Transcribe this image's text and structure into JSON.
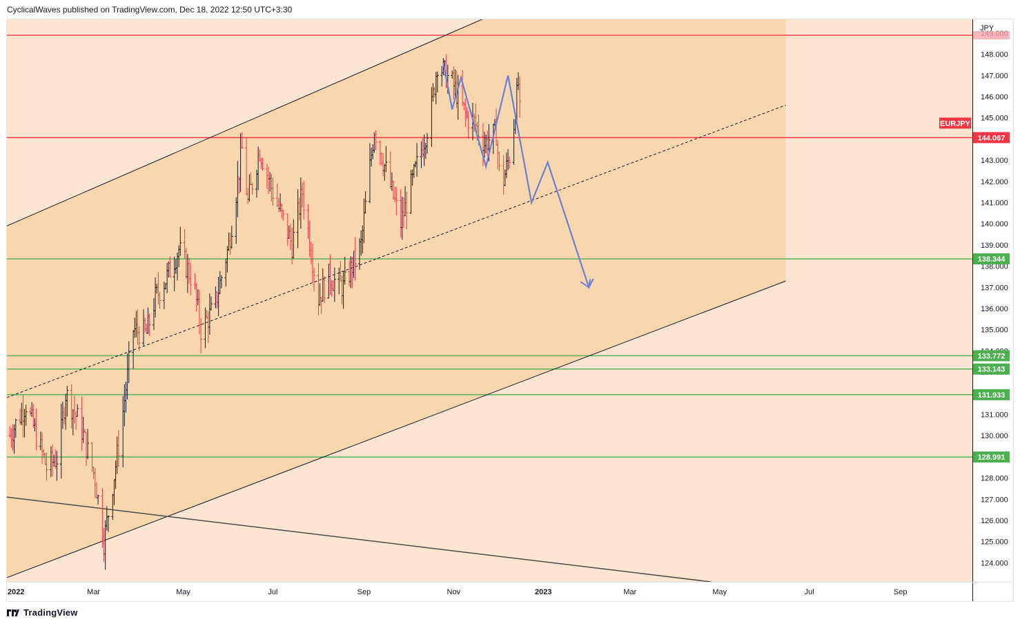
{
  "header": {
    "attribution": "CyclicalWaves published on TradingView.com, Dec 18, 2022 12:50 UTC+3:30"
  },
  "footer": {
    "brand": "TradingView"
  },
  "chart_data": {
    "type": "candlestick",
    "symbol": "EURJPY",
    "currency": "JPY",
    "last_price": "144.067",
    "x_tick_labels": [
      "2022",
      "Mar",
      "May",
      "Jul",
      "Sep",
      "Nov",
      "2023",
      "Mar",
      "May",
      "Jul",
      "Sep"
    ],
    "x_range": [
      "2022-01-01",
      "2023-10-20"
    ],
    "y_ticks": [
      "124.000",
      "125.000",
      "126.000",
      "127.000",
      "128.000",
      "129.000",
      "130.000",
      "131.000",
      "132.000",
      "133.000",
      "134.000",
      "135.000",
      "136.000",
      "137.000",
      "138.000",
      "139.000",
      "140.000",
      "141.000",
      "142.000",
      "143.000",
      "144.000",
      "145.000",
      "146.000",
      "147.000",
      "148.000",
      "149.000"
    ],
    "y_range": [
      123.1,
      149.65
    ],
    "horizontal_levels": [
      {
        "value": 148.9,
        "color": "#f23645",
        "label": "",
        "show_label": false
      },
      {
        "value": 144.067,
        "color": "#f23645",
        "label": "144.067",
        "show_label": true
      },
      {
        "value": 138.344,
        "color": "#4caf50",
        "label": "138.344",
        "show_label": true
      },
      {
        "value": 133.772,
        "color": "#4caf50",
        "label": "133.772",
        "show_label": true
      },
      {
        "value": 133.143,
        "color": "#4caf50",
        "label": "133.143",
        "show_label": true
      },
      {
        "value": 131.933,
        "color": "#4caf50",
        "label": "131.933",
        "show_label": true
      },
      {
        "value": 128.991,
        "color": "#4caf50",
        "label": "128.991",
        "show_label": true
      }
    ],
    "channel": {
      "upper": [
        [
          "2022-01-01",
          139.9
        ],
        [
          "2022-12-02",
          150.0
        ]
      ],
      "midline": [
        [
          "2022-01-01",
          131.8
        ],
        [
          "2023-06-15",
          145.6
        ]
      ],
      "lower": [
        [
          "2022-01-01",
          123.3
        ],
        [
          "2023-06-15",
          137.3
        ]
      ],
      "fill_end": "2023-06-15"
    },
    "long_trendline": [
      [
        "2022-01-01",
        127.1
      ],
      [
        "2023-04-25",
        123.1
      ]
    ],
    "projection_path": [
      [
        "2022-10-25",
        147.6
      ],
      [
        "2022-10-31",
        145.4
      ],
      [
        "2022-11-06",
        146.9
      ],
      [
        "2022-11-23",
        142.7
      ],
      [
        "2022-12-08",
        147.0
      ],
      [
        "2022-12-24",
        141.0
      ],
      [
        "2023-01-04",
        142.9
      ],
      [
        "2023-02-01",
        137.0
      ],
      [
        "2023-02-04",
        137.4
      ]
    ],
    "colors": {
      "up": "#131722",
      "down": "#f23645",
      "background": "#fbe4d0",
      "channel_fill": "#f8d7ae",
      "projection": "#6b7fd7",
      "support": "#4caf50",
      "resistance": "#f23645"
    },
    "series": [
      {
        "name": "EURJPY",
        "anchors": [
          [
            "2022-01-03",
            130.0
          ],
          [
            "2022-01-14",
            131.5
          ],
          [
            "2022-01-28",
            128.5
          ],
          [
            "2022-02-05",
            129.0
          ],
          [
            "2022-02-10",
            132.0
          ],
          [
            "2022-02-20",
            130.5
          ],
          [
            "2022-03-02",
            128.0
          ],
          [
            "2022-03-08",
            125.0
          ],
          [
            "2022-03-18",
            129.5
          ],
          [
            "2022-03-28",
            135.0
          ],
          [
            "2022-04-06",
            134.8
          ],
          [
            "2022-04-12",
            136.5
          ],
          [
            "2022-04-20",
            137.5
          ],
          [
            "2022-04-28",
            138.8
          ],
          [
            "2022-05-08",
            137.2
          ],
          [
            "2022-05-13",
            135.0
          ],
          [
            "2022-05-22",
            136.0
          ],
          [
            "2022-06-01",
            139.0
          ],
          [
            "2022-06-10",
            143.5
          ],
          [
            "2022-06-14",
            141.0
          ],
          [
            "2022-06-22",
            143.5
          ],
          [
            "2022-07-01",
            141.5
          ],
          [
            "2022-07-14",
            139.0
          ],
          [
            "2022-07-21",
            141.5
          ],
          [
            "2022-08-01",
            136.5
          ],
          [
            "2022-08-08",
            137.5
          ],
          [
            "2022-08-18",
            137.0
          ],
          [
            "2022-08-30",
            139.0
          ],
          [
            "2022-09-08",
            144.5
          ],
          [
            "2022-09-16",
            142.5
          ],
          [
            "2022-09-26",
            140.0
          ],
          [
            "2022-10-06",
            142.5
          ],
          [
            "2022-10-16",
            145.0
          ],
          [
            "2022-10-21",
            147.6
          ],
          [
            "2022-11-01",
            146.5
          ],
          [
            "2022-11-10",
            145.0
          ],
          [
            "2022-11-15",
            144.8
          ],
          [
            "2022-11-22",
            143.8
          ],
          [
            "2022-11-30",
            144.3
          ],
          [
            "2022-12-03",
            141.5
          ],
          [
            "2022-12-10",
            143.5
          ],
          [
            "2022-12-15",
            146.6
          ],
          [
            "2022-12-16",
            145.2
          ]
        ]
      }
    ]
  }
}
